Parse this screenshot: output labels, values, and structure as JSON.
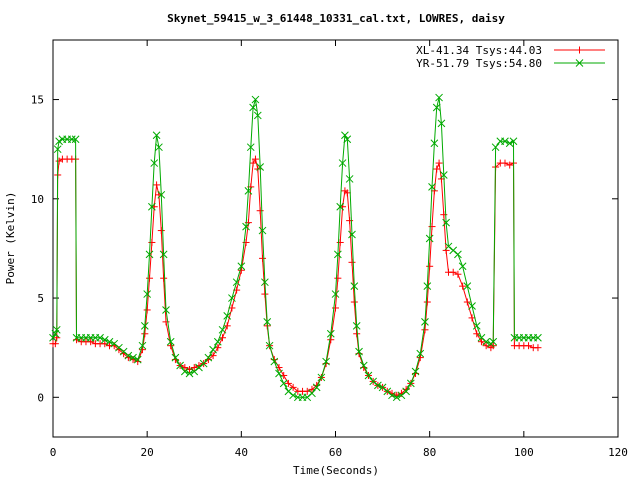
{
  "chart_data": {
    "type": "line",
    "title": "Skynet_59415_w_3_61448_10331_cal.txt, LOWRES, daisy",
    "xlabel": "Time(Seconds)",
    "ylabel": "Power (Kelvin)",
    "xlim": [
      0,
      120
    ],
    "ylim": [
      -2,
      18
    ],
    "xticks": [
      0,
      20,
      40,
      60,
      80,
      100,
      120
    ],
    "yticks": [
      0,
      5,
      10,
      15
    ],
    "grid": false,
    "legend_position": "top-right",
    "series": [
      {
        "name": "XL-41.34 Tsys:44.03",
        "color": "#ff0000",
        "marker": "plus",
        "points": [
          [
            0,
            2.7
          ],
          [
            0.5,
            2.7
          ],
          [
            0.8,
            3.0
          ],
          [
            1.0,
            11.2
          ],
          [
            1.3,
            11.9
          ],
          [
            2,
            12.0
          ],
          [
            3,
            12.0
          ],
          [
            4,
            12.0
          ],
          [
            4.8,
            12.0
          ],
          [
            5.0,
            2.9
          ],
          [
            6,
            2.8
          ],
          [
            7,
            2.8
          ],
          [
            8,
            2.8
          ],
          [
            9,
            2.7
          ],
          [
            10,
            2.7
          ],
          [
            11,
            2.7
          ],
          [
            12,
            2.6
          ],
          [
            13,
            2.6
          ],
          [
            14,
            2.4
          ],
          [
            15,
            2.2
          ],
          [
            16,
            2.0
          ],
          [
            17,
            1.9
          ],
          [
            18,
            1.8
          ],
          [
            19,
            2.4
          ],
          [
            19.5,
            3.2
          ],
          [
            20,
            4.4
          ],
          [
            20.5,
            6.0
          ],
          [
            21,
            7.8
          ],
          [
            21.5,
            9.6
          ],
          [
            22,
            10.7
          ],
          [
            22.5,
            10.2
          ],
          [
            23,
            8.4
          ],
          [
            23.5,
            6.0
          ],
          [
            24,
            3.8
          ],
          [
            25,
            2.6
          ],
          [
            26,
            1.9
          ],
          [
            27,
            1.6
          ],
          [
            28,
            1.5
          ],
          [
            29,
            1.4
          ],
          [
            30,
            1.5
          ],
          [
            31,
            1.6
          ],
          [
            32,
            1.7
          ],
          [
            33,
            1.9
          ],
          [
            34,
            2.1
          ],
          [
            35,
            2.5
          ],
          [
            36,
            3.0
          ],
          [
            37,
            3.6
          ],
          [
            38,
            4.5
          ],
          [
            39,
            5.4
          ],
          [
            40,
            6.4
          ],
          [
            41,
            7.8
          ],
          [
            41.5,
            8.8
          ],
          [
            42,
            10.6
          ],
          [
            42.5,
            11.8
          ],
          [
            43,
            12.0
          ],
          [
            43.5,
            11.5
          ],
          [
            44,
            9.4
          ],
          [
            44.5,
            7.0
          ],
          [
            45,
            5.2
          ],
          [
            45.5,
            3.6
          ],
          [
            46,
            2.6
          ],
          [
            47,
            1.9
          ],
          [
            48,
            1.5
          ],
          [
            49,
            1.1
          ],
          [
            50,
            0.7
          ],
          [
            51,
            0.5
          ],
          [
            52,
            0.3
          ],
          [
            53,
            0.3
          ],
          [
            54,
            0.3
          ],
          [
            55,
            0.4
          ],
          [
            56,
            0.6
          ],
          [
            57,
            1.0
          ],
          [
            58,
            1.7
          ],
          [
            59,
            2.9
          ],
          [
            60,
            4.5
          ],
          [
            60.5,
            6.0
          ],
          [
            61,
            7.8
          ],
          [
            61.5,
            9.6
          ],
          [
            62,
            10.4
          ],
          [
            62.5,
            10.3
          ],
          [
            63,
            8.9
          ],
          [
            63.5,
            6.8
          ],
          [
            64,
            4.8
          ],
          [
            64.5,
            3.2
          ],
          [
            65,
            2.2
          ],
          [
            66,
            1.5
          ],
          [
            67,
            1.1
          ],
          [
            68,
            0.8
          ],
          [
            69,
            0.6
          ],
          [
            70,
            0.5
          ],
          [
            71,
            0.3
          ],
          [
            72,
            0.2
          ],
          [
            73,
            0.1
          ],
          [
            74,
            0.2
          ],
          [
            75,
            0.4
          ],
          [
            76,
            0.7
          ],
          [
            77,
            1.2
          ],
          [
            78,
            2.0
          ],
          [
            79,
            3.4
          ],
          [
            79.5,
            4.8
          ],
          [
            80,
            6.6
          ],
          [
            80.5,
            8.6
          ],
          [
            81,
            10.4
          ],
          [
            81.5,
            11.5
          ],
          [
            82,
            11.8
          ],
          [
            82.5,
            11.0
          ],
          [
            83,
            9.2
          ],
          [
            83.5,
            7.4
          ],
          [
            84,
            6.3
          ],
          [
            85,
            6.3
          ],
          [
            86,
            6.2
          ],
          [
            87,
            5.6
          ],
          [
            88,
            4.8
          ],
          [
            89,
            4.0
          ],
          [
            90,
            3.2
          ],
          [
            91,
            2.8
          ],
          [
            92,
            2.6
          ],
          [
            93,
            2.5
          ],
          [
            93.5,
            2.6
          ],
          [
            94,
            11.6
          ],
          [
            95,
            11.8
          ],
          [
            96,
            11.8
          ],
          [
            97,
            11.7
          ],
          [
            97.8,
            11.8
          ],
          [
            98,
            2.6
          ],
          [
            99,
            2.6
          ],
          [
            100,
            2.6
          ],
          [
            101,
            2.6
          ],
          [
            102,
            2.5
          ],
          [
            103,
            2.5
          ]
        ]
      },
      {
        "name": "YR-51.79 Tsys:54.80",
        "color": "#00aa00",
        "marker": "x",
        "points": [
          [
            0,
            3.0
          ],
          [
            0.5,
            3.2
          ],
          [
            0.8,
            3.4
          ],
          [
            1.0,
            12.5
          ],
          [
            1.3,
            12.9
          ],
          [
            2,
            13.0
          ],
          [
            3,
            13.0
          ],
          [
            4,
            13.0
          ],
          [
            4.8,
            13.0
          ],
          [
            5.0,
            3.0
          ],
          [
            6,
            3.0
          ],
          [
            7,
            3.0
          ],
          [
            8,
            3.0
          ],
          [
            9,
            3.0
          ],
          [
            10,
            3.0
          ],
          [
            11,
            2.9
          ],
          [
            12,
            2.8
          ],
          [
            13,
            2.7
          ],
          [
            14,
            2.5
          ],
          [
            15,
            2.3
          ],
          [
            16,
            2.1
          ],
          [
            17,
            2.0
          ],
          [
            18,
            1.9
          ],
          [
            19,
            2.6
          ],
          [
            19.5,
            3.6
          ],
          [
            20,
            5.2
          ],
          [
            20.5,
            7.2
          ],
          [
            21,
            9.6
          ],
          [
            21.5,
            11.8
          ],
          [
            22,
            13.2
          ],
          [
            22.5,
            12.6
          ],
          [
            23,
            10.2
          ],
          [
            23.5,
            7.2
          ],
          [
            24,
            4.4
          ],
          [
            25,
            2.8
          ],
          [
            26,
            2.0
          ],
          [
            27,
            1.6
          ],
          [
            28,
            1.3
          ],
          [
            29,
            1.2
          ],
          [
            30,
            1.3
          ],
          [
            31,
            1.5
          ],
          [
            32,
            1.7
          ],
          [
            33,
            2.0
          ],
          [
            34,
            2.4
          ],
          [
            35,
            2.8
          ],
          [
            36,
            3.4
          ],
          [
            37,
            4.1
          ],
          [
            38,
            5.0
          ],
          [
            39,
            5.8
          ],
          [
            40,
            6.6
          ],
          [
            41,
            8.6
          ],
          [
            41.5,
            10.4
          ],
          [
            42,
            12.6
          ],
          [
            42.5,
            14.6
          ],
          [
            43,
            15.0
          ],
          [
            43.5,
            14.2
          ],
          [
            44,
            11.6
          ],
          [
            44.5,
            8.4
          ],
          [
            45,
            5.8
          ],
          [
            45.5,
            3.8
          ],
          [
            46,
            2.6
          ],
          [
            47,
            1.8
          ],
          [
            48,
            1.2
          ],
          [
            49,
            0.7
          ],
          [
            50,
            0.3
          ],
          [
            51,
            0.1
          ],
          [
            52,
            0.0
          ],
          [
            53,
            0.0
          ],
          [
            54,
            0.0
          ],
          [
            55,
            0.2
          ],
          [
            56,
            0.5
          ],
          [
            57,
            1.0
          ],
          [
            58,
            1.8
          ],
          [
            59,
            3.2
          ],
          [
            60,
            5.2
          ],
          [
            60.5,
            7.2
          ],
          [
            61,
            9.6
          ],
          [
            61.5,
            11.8
          ],
          [
            62,
            13.2
          ],
          [
            62.5,
            13.0
          ],
          [
            63,
            11.0
          ],
          [
            63.5,
            8.2
          ],
          [
            64,
            5.6
          ],
          [
            64.5,
            3.6
          ],
          [
            65,
            2.3
          ],
          [
            66,
            1.6
          ],
          [
            67,
            1.1
          ],
          [
            68,
            0.8
          ],
          [
            69,
            0.6
          ],
          [
            70,
            0.5
          ],
          [
            71,
            0.3
          ],
          [
            72,
            0.1
          ],
          [
            73,
            0.0
          ],
          [
            74,
            0.1
          ],
          [
            75,
            0.3
          ],
          [
            76,
            0.7
          ],
          [
            77,
            1.3
          ],
          [
            78,
            2.2
          ],
          [
            79,
            3.8
          ],
          [
            79.5,
            5.6
          ],
          [
            80,
            8.0
          ],
          [
            80.5,
            10.6
          ],
          [
            81,
            12.8
          ],
          [
            81.5,
            14.6
          ],
          [
            82,
            15.1
          ],
          [
            82.5,
            13.8
          ],
          [
            83,
            11.2
          ],
          [
            83.5,
            8.8
          ],
          [
            84,
            7.6
          ],
          [
            85,
            7.4
          ],
          [
            86,
            7.2
          ],
          [
            87,
            6.6
          ],
          [
            88,
            5.6
          ],
          [
            89,
            4.6
          ],
          [
            90,
            3.6
          ],
          [
            91,
            3.0
          ],
          [
            92,
            2.8
          ],
          [
            93,
            2.7
          ],
          [
            93.5,
            2.8
          ],
          [
            94,
            12.6
          ],
          [
            95,
            12.9
          ],
          [
            96,
            12.9
          ],
          [
            97,
            12.8
          ],
          [
            97.8,
            12.9
          ],
          [
            98,
            3.0
          ],
          [
            99,
            3.0
          ],
          [
            100,
            3.0
          ],
          [
            101,
            3.0
          ],
          [
            102,
            3.0
          ],
          [
            103,
            3.0
          ]
        ]
      }
    ]
  }
}
